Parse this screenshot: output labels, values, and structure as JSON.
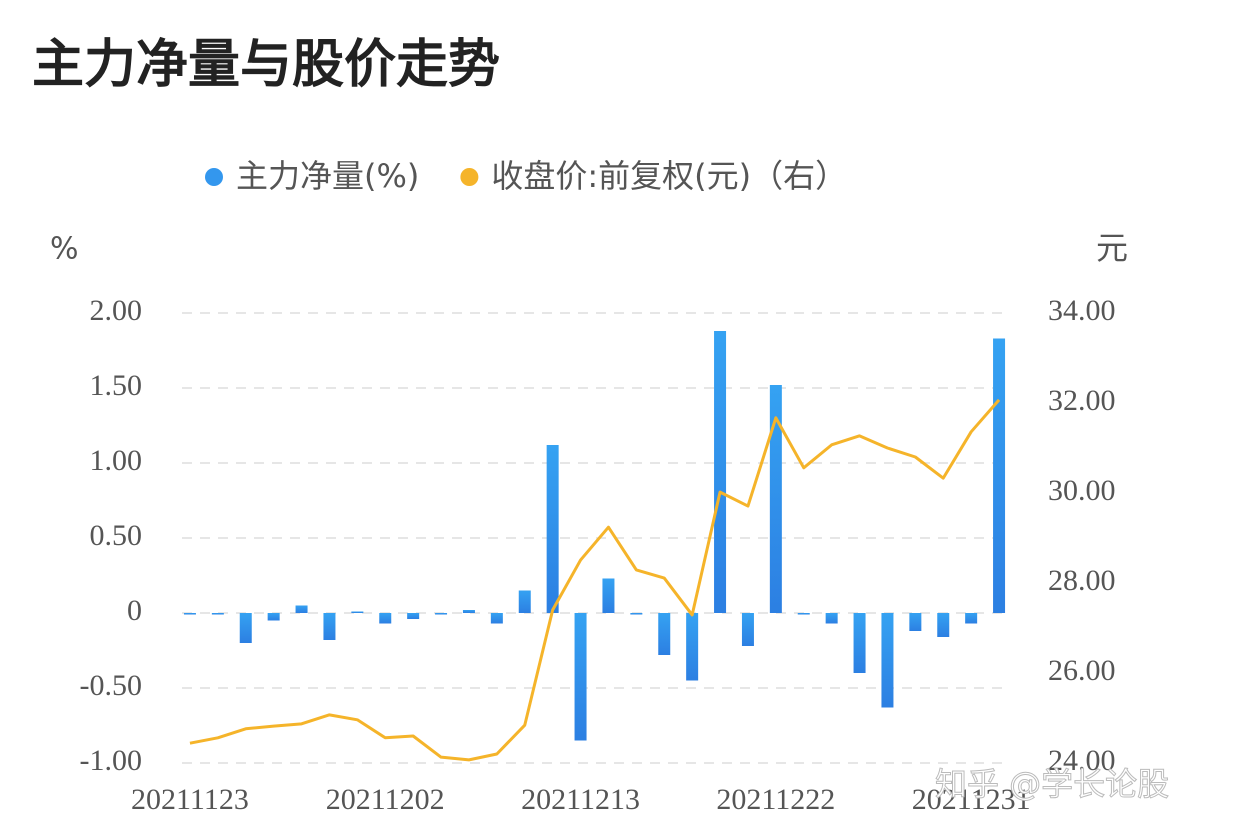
{
  "chart_data": {
    "type": "bar-line",
    "title": "主力净量与股价走势",
    "y_axis_label": "%",
    "y2_axis_label": "元",
    "watermark": "知乎 @学长论股",
    "categories": [
      "20211123",
      null,
      null,
      null,
      null,
      null,
      null,
      "20211202",
      null,
      null,
      null,
      null,
      null,
      null,
      "20211213",
      null,
      null,
      null,
      null,
      null,
      null,
      "20211222",
      null,
      null,
      null,
      null,
      null,
      null,
      "20211231",
      null
    ],
    "series": [
      {
        "name": "主力净量(%)",
        "type": "bar",
        "color": "#3397ee",
        "values": [
          0.0,
          0.0,
          -0.2,
          -0.05,
          0.05,
          -0.18,
          0.01,
          -0.07,
          -0.04,
          0.0,
          0.02,
          -0.07,
          0.15,
          1.12,
          -0.85,
          0.23,
          0.0,
          -0.28,
          -0.45,
          1.88,
          -0.22,
          1.52,
          0.0,
          -0.07,
          -0.4,
          -0.63,
          -0.12,
          -0.16,
          -0.07,
          1.83
        ]
      },
      {
        "name": "收盘价:前复权(元)（右）",
        "type": "line",
        "axis": "y2",
        "color": "#f5b42a",
        "values": [
          24.44,
          24.56,
          24.76,
          24.82,
          24.87,
          25.07,
          24.96,
          24.56,
          24.6,
          24.13,
          24.07,
          24.2,
          24.84,
          27.4,
          28.51,
          29.24,
          28.29,
          28.11,
          27.29,
          30.02,
          29.71,
          31.67,
          30.56,
          31.07,
          31.27,
          31.0,
          30.8,
          30.33,
          31.36,
          32.07
        ]
      }
    ],
    "ylim": [
      -1,
      2
    ],
    "yticks": [
      {
        "value": -1,
        "label": "-1.00"
      },
      {
        "value": -0.5,
        "label": "-0.50"
      },
      0,
      {
        "value": 0.5,
        "label": "0.50"
      },
      {
        "value": 1,
        "label": "1.00"
      },
      {
        "value": 1.5,
        "label": "1.50"
      },
      {
        "value": 2,
        "label": "2.00"
      }
    ],
    "y2lim": [
      24,
      34
    ],
    "y2ticks": [
      {
        "value": 24,
        "label": "24.00"
      },
      {
        "value": 26,
        "label": "26.00"
      },
      {
        "value": 28,
        "label": "28.00"
      },
      {
        "value": 30,
        "label": "30.00"
      },
      {
        "value": 32,
        "label": "32.00"
      },
      {
        "value": 34,
        "label": "34.00"
      }
    ],
    "grid": true,
    "legend": "top"
  }
}
